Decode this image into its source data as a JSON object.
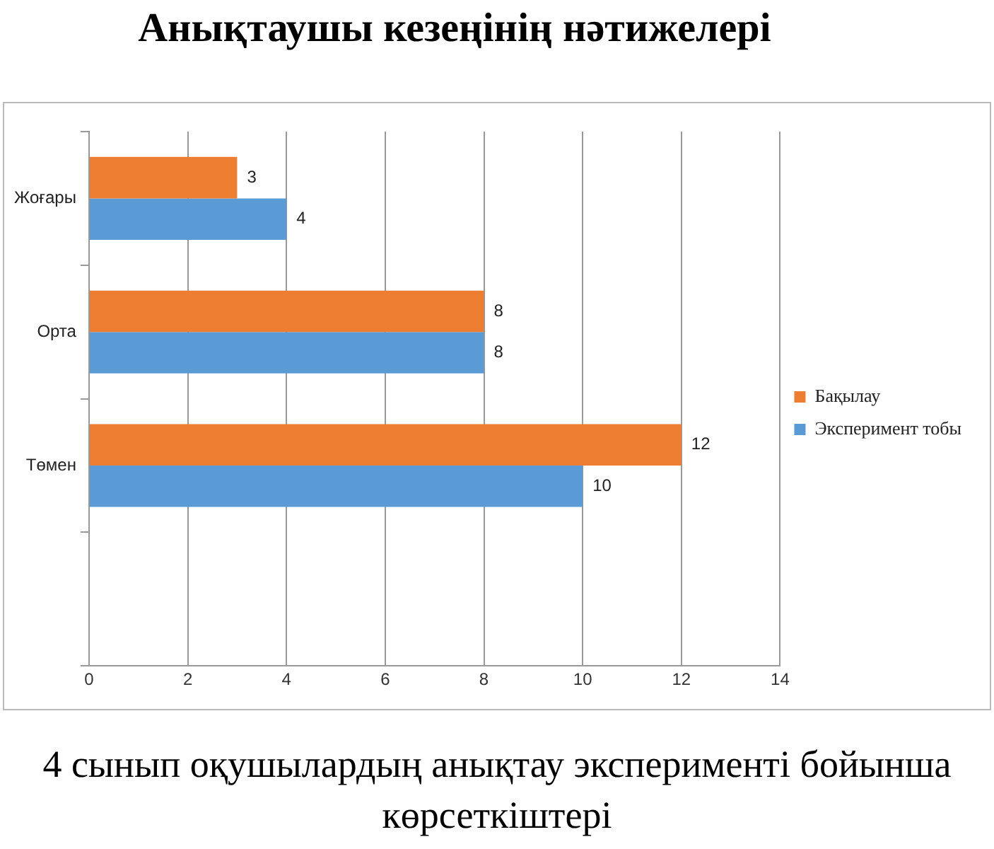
{
  "chart_data": {
    "type": "bar",
    "orientation": "horizontal",
    "title": "Анықтаушы кезеңінің нәтижелері",
    "categories": [
      "Жоғары",
      "Орта",
      "Төмен",
      null
    ],
    "series": [
      {
        "name": "Бақылау",
        "color": "#ed7d31",
        "values": [
          3,
          8,
          12,
          null
        ]
      },
      {
        "name": "Эксперимент тобы",
        "color": "#5b9bd5",
        "values": [
          4,
          8,
          10,
          null
        ]
      }
    ],
    "xlim": [
      0,
      14
    ],
    "xticks": [
      0,
      2,
      4,
      6,
      8,
      10,
      12,
      14
    ],
    "grid": "x",
    "legend": "right",
    "data_labels": true,
    "annotations": [
      "4 сынып оқушылардың анықтау эксперименті бойынша көрсеткіштері"
    ]
  }
}
